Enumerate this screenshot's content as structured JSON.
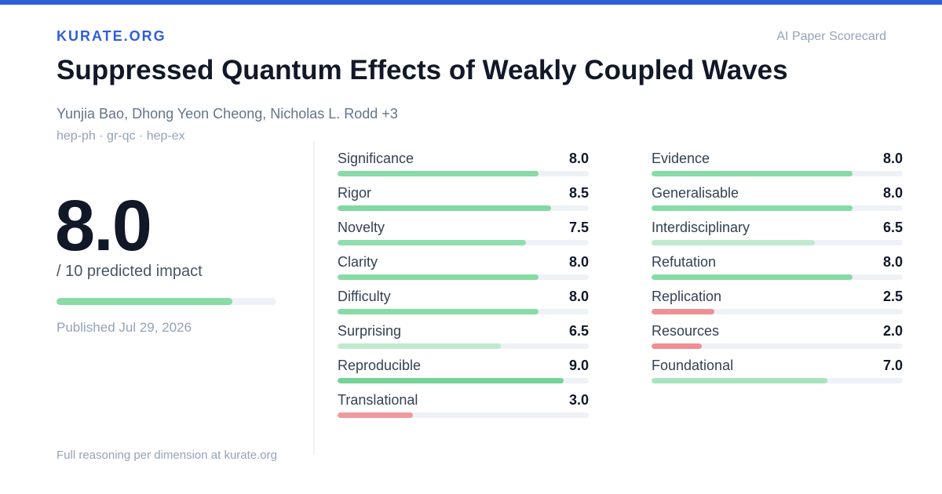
{
  "colors": {
    "brand": "#2f5fd8",
    "bar_high": "#7dd4a0",
    "bar_mid": "#bfeacf",
    "bar_low": "#ee9a9e",
    "track": "#eef2f7"
  },
  "header": {
    "brand": "KURATE.ORG",
    "tag": "AI Paper Scorecard"
  },
  "paper": {
    "title": "Suppressed Quantum Effects of Weakly Coupled Waves",
    "authors": "Yunjia Bao, Dhong Yeon Cheong, Nicholas L. Rodd +3",
    "categories": "hep-ph · gr-qc · hep-ex"
  },
  "score": {
    "value": "8.0",
    "fraction": 0.8,
    "caption": "/ 10 predicted impact",
    "published": "Published Jul 29, 2026"
  },
  "footer": {
    "note": "Full reasoning per dimension at kurate.org"
  },
  "metrics_left": [
    {
      "name": "Significance",
      "value": "8.0",
      "fraction": 0.8,
      "color": "#86dba6"
    },
    {
      "name": "Rigor",
      "value": "8.5",
      "fraction": 0.85,
      "color": "#80d8a2"
    },
    {
      "name": "Novelty",
      "value": "7.5",
      "fraction": 0.75,
      "color": "#90deae"
    },
    {
      "name": "Clarity",
      "value": "8.0",
      "fraction": 0.8,
      "color": "#86dba6"
    },
    {
      "name": "Difficulty",
      "value": "8.0",
      "fraction": 0.8,
      "color": "#86dba6"
    },
    {
      "name": "Surprising",
      "value": "6.5",
      "fraction": 0.65,
      "color": "#bfeacf"
    },
    {
      "name": "Reproducible",
      "value": "9.0",
      "fraction": 0.9,
      "color": "#75d398"
    },
    {
      "name": "Translational",
      "value": "3.0",
      "fraction": 0.3,
      "color": "#ee9a9e"
    }
  ],
  "metrics_right": [
    {
      "name": "Evidence",
      "value": "8.0",
      "fraction": 0.8,
      "color": "#86dba6"
    },
    {
      "name": "Generalisable",
      "value": "8.0",
      "fraction": 0.8,
      "color": "#86dba6"
    },
    {
      "name": "Interdisciplinary",
      "value": "6.5",
      "fraction": 0.65,
      "color": "#bfeacf"
    },
    {
      "name": "Refutation",
      "value": "8.0",
      "fraction": 0.8,
      "color": "#86dba6"
    },
    {
      "name": "Replication",
      "value": "2.5",
      "fraction": 0.25,
      "color": "#ee8f93"
    },
    {
      "name": "Resources",
      "value": "2.0",
      "fraction": 0.2,
      "color": "#ee8f93"
    },
    {
      "name": "Foundational",
      "value": "7.0",
      "fraction": 0.7,
      "color": "#a8e4bf"
    }
  ]
}
